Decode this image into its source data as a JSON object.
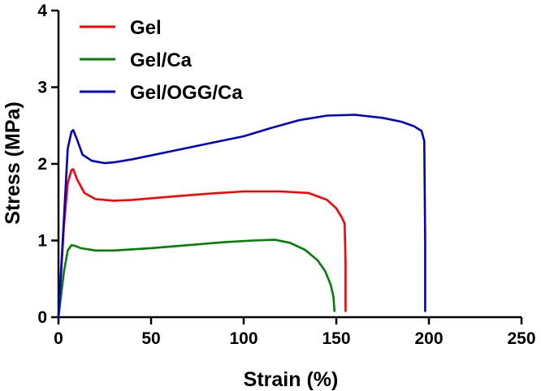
{
  "chart_data": {
    "type": "line",
    "title": "",
    "xlabel": "Strain (%)",
    "ylabel": "Stress (MPa)",
    "xlim": [
      0,
      250
    ],
    "ylim": [
      0,
      4
    ],
    "xticks": [
      0,
      50,
      100,
      150,
      200,
      250
    ],
    "yticks": [
      0,
      1,
      2,
      3,
      4
    ],
    "grid": false,
    "legend_position": "top-left",
    "series": [
      {
        "name": "Gel",
        "color": "#ff0000",
        "x": [
          0,
          3,
          5,
          7,
          8,
          10,
          14,
          20,
          30,
          40,
          60,
          80,
          100,
          120,
          135,
          145,
          150,
          153,
          154.5,
          155,
          155
        ],
        "y": [
          0,
          1.2,
          1.75,
          1.92,
          1.93,
          1.8,
          1.62,
          1.54,
          1.52,
          1.53,
          1.57,
          1.61,
          1.64,
          1.64,
          1.62,
          1.53,
          1.42,
          1.3,
          1.22,
          0.7,
          0.08
        ]
      },
      {
        "name": "Gel/Ca",
        "color": "#008000",
        "x": [
          0,
          3,
          5,
          7,
          9,
          12,
          20,
          30,
          50,
          70,
          90,
          105,
          117,
          125,
          133,
          140,
          144,
          147,
          148.5,
          149
        ],
        "y": [
          0,
          0.6,
          0.87,
          0.94,
          0.93,
          0.9,
          0.87,
          0.87,
          0.9,
          0.94,
          0.98,
          1.0,
          1.01,
          0.97,
          0.88,
          0.74,
          0.6,
          0.42,
          0.26,
          0.08
        ]
      },
      {
        "name": "Gel/OGG/Ca",
        "color": "#0000cc",
        "x": [
          0,
          3,
          5,
          7,
          8,
          10,
          13,
          18,
          25,
          30,
          40,
          60,
          80,
          100,
          115,
          130,
          145,
          160,
          175,
          185,
          192,
          196,
          197.5,
          198,
          198
        ],
        "y": [
          0,
          1.3,
          2.2,
          2.42,
          2.44,
          2.32,
          2.12,
          2.04,
          2.01,
          2.02,
          2.06,
          2.16,
          2.26,
          2.36,
          2.47,
          2.57,
          2.63,
          2.64,
          2.6,
          2.55,
          2.49,
          2.43,
          2.3,
          1.0,
          0.08
        ]
      }
    ]
  }
}
